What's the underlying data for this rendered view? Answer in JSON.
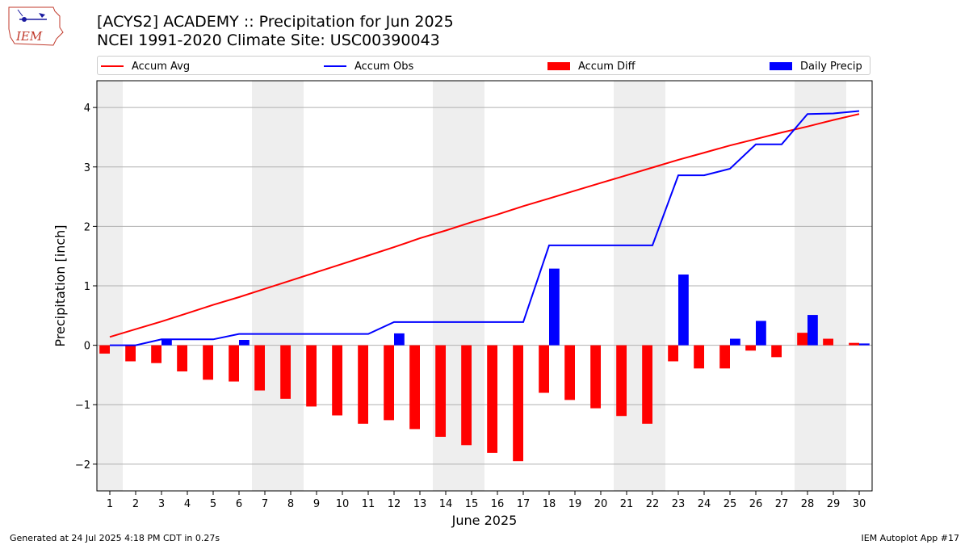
{
  "header": {
    "title_line1": "[ACYS2] ACADEMY :: Precipitation for Jun 2025",
    "title_line2": "NCEI 1991-2020 Climate Site: USC00390043"
  },
  "logo": {
    "text": "IEM",
    "icon": "iem-iowa-map-logo"
  },
  "footer": {
    "generated": "Generated at 24 Jul 2025 4:18 PM CDT in 0.27s",
    "app": "IEM Autoplot App #17"
  },
  "chart_data": {
    "type": "bar",
    "title": "[ACYS2] ACADEMY :: Precipitation for Jun 2025",
    "subtitle": "NCEI 1991-2020 Climate Site: USC00390043",
    "xlabel": "June 2025",
    "ylabel": "Precipitation [inch]",
    "ylim": [
      -2.45,
      4.45
    ],
    "yticks": [
      -2,
      -1,
      0,
      1,
      2,
      3,
      4
    ],
    "ytick_labels": [
      "−2",
      "−1",
      "0",
      "1",
      "2",
      "3",
      "4"
    ],
    "grid": "horizontal",
    "legend_placement": "top",
    "colors": {
      "accum_avg": "#ff0000",
      "accum_obs": "#0000ff",
      "accum_diff": "#ff0000",
      "daily_precip": "#0000ff",
      "weekend_shade": "#eeeeee"
    },
    "weekend_days": [
      1,
      7,
      8,
      14,
      15,
      21,
      22,
      28,
      29
    ],
    "x": [
      "1",
      "2",
      "3",
      "4",
      "5",
      "6",
      "7",
      "8",
      "9",
      "10",
      "11",
      "12",
      "13",
      "14",
      "15",
      "16",
      "17",
      "18",
      "19",
      "20",
      "21",
      "22",
      "23",
      "24",
      "25",
      "26",
      "27",
      "28",
      "29",
      "30"
    ],
    "series": [
      {
        "name": "Accum Avg",
        "kind": "line",
        "values": [
          0.14,
          0.27,
          0.4,
          0.54,
          0.68,
          0.81,
          0.95,
          1.09,
          1.23,
          1.37,
          1.51,
          1.65,
          1.8,
          1.93,
          2.07,
          2.2,
          2.34,
          2.47,
          2.6,
          2.73,
          2.86,
          2.99,
          3.12,
          3.24,
          3.36,
          3.47,
          3.58,
          3.68,
          3.79,
          3.89
        ]
      },
      {
        "name": "Accum Obs",
        "kind": "line",
        "values": [
          0.0,
          0.0,
          0.1,
          0.1,
          0.1,
          0.19,
          0.19,
          0.19,
          0.19,
          0.19,
          0.19,
          0.39,
          0.39,
          0.39,
          0.39,
          0.39,
          0.39,
          1.68,
          1.68,
          1.68,
          1.68,
          1.68,
          2.86,
          2.86,
          2.97,
          3.38,
          3.38,
          3.89,
          3.9,
          3.94
        ]
      },
      {
        "name": "Accum Diff",
        "kind": "bar",
        "values": [
          -0.14,
          -0.27,
          -0.3,
          -0.44,
          -0.58,
          -0.61,
          -0.76,
          -0.9,
          -1.03,
          -1.18,
          -1.32,
          -1.26,
          -1.41,
          -1.54,
          -1.68,
          -1.81,
          -1.95,
          -0.8,
          -0.92,
          -1.06,
          -1.19,
          -1.32,
          -0.27,
          -0.39,
          -0.39,
          -0.09,
          -0.2,
          0.21,
          0.11,
          0.04
        ]
      },
      {
        "name": "Daily Precip",
        "kind": "bar",
        "values": [
          0,
          0,
          0.1,
          0,
          0,
          0.09,
          0,
          0,
          0,
          0,
          0,
          0.2,
          0,
          0,
          0,
          0,
          0,
          1.29,
          0,
          0,
          0,
          0,
          1.19,
          0,
          0.11,
          0.41,
          0,
          0.51,
          0,
          0.03
        ]
      }
    ]
  }
}
